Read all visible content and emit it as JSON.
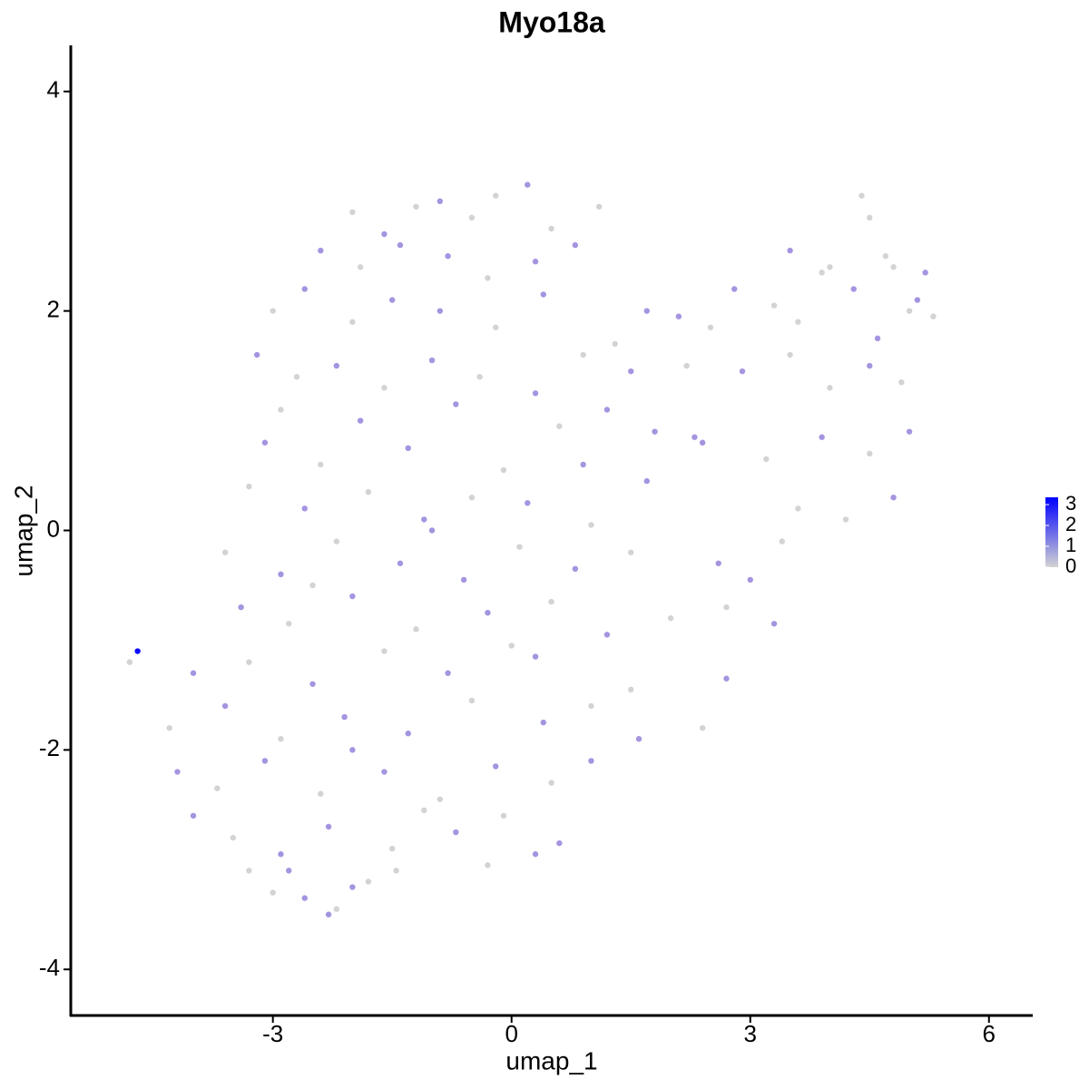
{
  "chart_data": {
    "type": "scatter",
    "title": "Myo18a",
    "x_label": "umap_1",
    "y_label": "umap_2",
    "xlim": [
      -5.54,
      6.55
    ],
    "ylim": [
      -4.42,
      4.42
    ],
    "xticks": [
      -3,
      0,
      3,
      6
    ],
    "yticks": [
      -4,
      -2,
      0,
      2,
      4
    ],
    "grid": false,
    "colorbar": {
      "lim": [
        0,
        3.35
      ],
      "ticks": [
        0,
        1,
        2,
        3
      ],
      "low": "#d3d3d3",
      "high": "#0000ff"
    },
    "x": [
      -2.0,
      -1.6,
      -1.2,
      -0.9,
      -0.5,
      -0.2,
      0.2,
      0.5,
      1.1,
      4.4,
      -2.4,
      -1.9,
      -1.4,
      -0.8,
      -0.3,
      0.3,
      0.8,
      3.5,
      4.0,
      4.7,
      -3.0,
      -2.6,
      -2.0,
      -1.5,
      -0.9,
      -0.2,
      0.4,
      1.7,
      2.8,
      3.3,
      3.9,
      4.3,
      4.8,
      5.1,
      5.3,
      2.1,
      2.5,
      3.6,
      4.6,
      5.0,
      -3.2,
      -2.7,
      -2.2,
      -1.6,
      -1.0,
      -0.4,
      0.3,
      0.9,
      1.5,
      2.2,
      2.9,
      3.5,
      4.0,
      4.5,
      4.9,
      -2.9,
      -1.9,
      -0.7,
      0.6,
      1.2,
      -3.1,
      -2.4,
      -1.3,
      -0.1,
      1.8,
      2.4,
      3.2,
      3.9,
      4.5,
      5.0,
      -3.3,
      -2.6,
      -1.8,
      -1.1,
      -0.5,
      0.2,
      1.0,
      1.7,
      3.6,
      4.8,
      -3.6,
      -2.9,
      -2.2,
      -1.4,
      -0.6,
      0.1,
      0.8,
      1.5,
      2.6,
      3.4,
      -3.4,
      -2.8,
      -2.0,
      -1.2,
      -0.3,
      0.5,
      1.2,
      2.0,
      2.7,
      3.3,
      -4.7,
      -4.8,
      -4.0,
      -3.3,
      -2.5,
      -1.6,
      -0.8,
      0.3,
      1.5,
      2.7,
      -4.3,
      -3.6,
      -2.9,
      -2.1,
      -1.3,
      -0.5,
      0.4,
      1.0,
      1.6,
      2.4,
      -4.2,
      -3.7,
      -3.1,
      -2.4,
      -1.6,
      -0.9,
      -0.2,
      0.5,
      1.0,
      -2.0,
      -4.0,
      -3.5,
      -2.9,
      -2.3,
      -1.5,
      -0.7,
      -0.1,
      0.6,
      -1.1,
      0.3,
      -3.3,
      -2.6,
      -2.3,
      -2.2,
      -2.0,
      -1.45,
      -0.3,
      -3.0,
      -2.8,
      -1.8,
      -2.5,
      -1.0,
      0.0,
      0.9,
      1.3,
      2.3,
      3.0,
      4.2,
      4.5,
      5.2
    ],
    "values": [
      2.9,
      2.7,
      2.95,
      3.0,
      2.85,
      3.05,
      3.15,
      2.75,
      2.95,
      3.05,
      2.55,
      2.4,
      2.6,
      2.5,
      2.3,
      2.45,
      2.6,
      2.55,
      2.4,
      2.5,
      2.0,
      2.2,
      1.9,
      2.1,
      2.0,
      1.85,
      2.15,
      2.0,
      2.2,
      2.05,
      2.35,
      2.2,
      2.4,
      2.1,
      1.95,
      1.95,
      1.85,
      1.9,
      1.75,
      2.0,
      1.6,
      1.4,
      1.5,
      1.3,
      1.55,
      1.4,
      1.25,
      1.6,
      1.45,
      1.5,
      1.45,
      1.6,
      1.3,
      1.5,
      1.35,
      1.1,
      1.0,
      1.15,
      0.95,
      1.1,
      0.8,
      0.6,
      0.75,
      0.55,
      0.9,
      0.8,
      0.65,
      0.85,
      0.7,
      0.9,
      0.4,
      0.2,
      0.35,
      0.1,
      0.3,
      0.25,
      0.05,
      0.45,
      0.2,
      0.3,
      -0.2,
      -0.4,
      -0.1,
      -0.3,
      -0.45,
      -0.15,
      -0.35,
      -0.2,
      -0.3,
      -0.1,
      -0.7,
      -0.85,
      -0.6,
      -0.9,
      -0.75,
      -0.65,
      -0.95,
      -0.8,
      -0.7,
      -0.85,
      -1.1,
      -1.2,
      -1.3,
      -1.2,
      -1.4,
      -1.1,
      -1.3,
      -1.15,
      -1.45,
      -1.35,
      -1.8,
      -1.6,
      -1.9,
      -1.7,
      -1.85,
      -1.55,
      -1.75,
      -1.6,
      -1.9,
      -1.8,
      -2.2,
      -2.35,
      -2.1,
      -2.4,
      -2.2,
      -2.45,
      -2.15,
      -2.3,
      -2.1,
      -2.0,
      -2.6,
      -2.8,
      -2.95,
      -2.7,
      -2.9,
      -2.75,
      -2.6,
      -2.85,
      -2.55,
      -2.95,
      -3.1,
      -3.35,
      -3.5,
      -3.45,
      -3.25,
      -3.1,
      -3.05,
      -3.3,
      -3.1,
      -3.2,
      -0.5,
      0.0,
      -1.05,
      0.6,
      1.7,
      0.85,
      -0.45,
      0.1,
      2.85,
      2.35
    ],
    "expression": [
      0,
      1,
      0,
      1,
      0,
      0,
      1,
      0,
      0,
      0,
      1,
      0,
      1,
      1,
      0,
      1,
      1,
      1,
      0,
      0,
      0,
      1,
      0,
      1,
      1,
      0,
      1,
      1,
      1,
      0,
      0,
      1,
      0,
      1,
      0,
      1,
      0,
      0,
      1,
      0,
      1,
      0,
      1,
      0,
      1,
      0,
      1,
      0,
      1,
      0,
      1,
      0,
      0,
      1,
      0,
      0,
      1,
      1,
      0,
      1,
      1,
      0,
      1,
      0,
      1,
      1,
      0,
      1,
      0,
      1,
      0,
      1,
      0,
      1,
      0,
      1,
      0,
      1,
      0,
      1,
      0,
      1,
      0,
      1,
      1,
      0,
      1,
      0,
      1,
      0,
      1,
      0,
      1,
      0,
      1,
      0,
      1,
      0,
      0,
      1,
      3.2,
      0,
      1,
      0,
      1,
      0,
      1,
      1,
      0,
      1,
      0,
      1,
      0,
      1,
      1,
      0,
      1,
      0,
      1,
      0,
      1,
      0,
      1,
      0,
      1,
      0,
      1,
      0,
      1,
      1,
      1,
      0,
      1,
      1,
      0,
      1,
      0,
      1,
      0,
      1,
      0,
      1,
      1,
      0,
      1,
      0,
      0,
      0,
      1,
      0,
      0,
      1,
      0,
      1,
      0,
      1,
      1,
      0,
      0,
      1
    ]
  }
}
